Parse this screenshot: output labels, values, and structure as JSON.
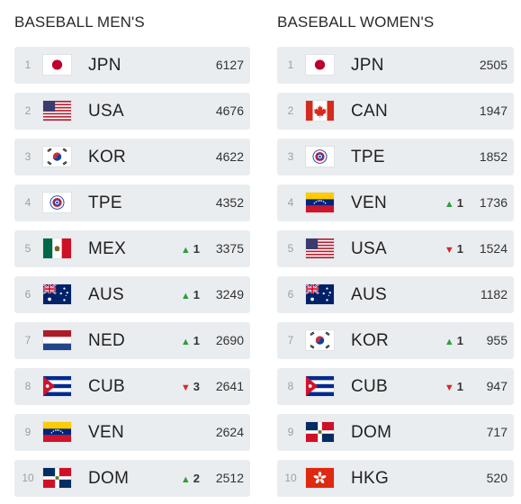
{
  "men": {
    "title": "BASEBALL MEN'S",
    "rows": [
      {
        "rank": "1",
        "code": "JPN",
        "flag": "jpn-flag-icon",
        "change_dir": "",
        "change": "",
        "points": "6127"
      },
      {
        "rank": "2",
        "code": "USA",
        "flag": "usa-flag-icon",
        "change_dir": "",
        "change": "",
        "points": "4676"
      },
      {
        "rank": "3",
        "code": "KOR",
        "flag": "kor-flag-icon",
        "change_dir": "",
        "change": "",
        "points": "4622"
      },
      {
        "rank": "4",
        "code": "TPE",
        "flag": "tpe-flag-icon",
        "change_dir": "",
        "change": "",
        "points": "4352"
      },
      {
        "rank": "5",
        "code": "MEX",
        "flag": "mex-flag-icon",
        "change_dir": "up",
        "change": "1",
        "points": "3375"
      },
      {
        "rank": "6",
        "code": "AUS",
        "flag": "aus-flag-icon",
        "change_dir": "up",
        "change": "1",
        "points": "3249"
      },
      {
        "rank": "7",
        "code": "NED",
        "flag": "ned-flag-icon",
        "change_dir": "up",
        "change": "1",
        "points": "2690"
      },
      {
        "rank": "8",
        "code": "CUB",
        "flag": "cub-flag-icon",
        "change_dir": "down",
        "change": "3",
        "points": "2641"
      },
      {
        "rank": "9",
        "code": "VEN",
        "flag": "ven-flag-icon",
        "change_dir": "",
        "change": "",
        "points": "2624"
      },
      {
        "rank": "10",
        "code": "DOM",
        "flag": "dom-flag-icon",
        "change_dir": "up",
        "change": "2",
        "points": "2512"
      }
    ]
  },
  "women": {
    "title": "BASEBALL WOMEN'S",
    "rows": [
      {
        "rank": "1",
        "code": "JPN",
        "flag": "jpn-flag-icon",
        "change_dir": "",
        "change": "",
        "points": "2505"
      },
      {
        "rank": "2",
        "code": "CAN",
        "flag": "can-flag-icon",
        "change_dir": "",
        "change": "",
        "points": "1947"
      },
      {
        "rank": "3",
        "code": "TPE",
        "flag": "tpe-flag-icon",
        "change_dir": "",
        "change": "",
        "points": "1852"
      },
      {
        "rank": "4",
        "code": "VEN",
        "flag": "ven-flag-icon",
        "change_dir": "up",
        "change": "1",
        "points": "1736"
      },
      {
        "rank": "5",
        "code": "USA",
        "flag": "usa-flag-icon",
        "change_dir": "down",
        "change": "1",
        "points": "1524"
      },
      {
        "rank": "6",
        "code": "AUS",
        "flag": "aus-flag-icon",
        "change_dir": "",
        "change": "",
        "points": "1182"
      },
      {
        "rank": "7",
        "code": "KOR",
        "flag": "kor-flag-icon",
        "change_dir": "up",
        "change": "1",
        "points": "955"
      },
      {
        "rank": "8",
        "code": "CUB",
        "flag": "cub-flag-icon",
        "change_dir": "down",
        "change": "1",
        "points": "947"
      },
      {
        "rank": "9",
        "code": "DOM",
        "flag": "dom-flag-icon",
        "change_dir": "",
        "change": "",
        "points": "717"
      },
      {
        "rank": "10",
        "code": "HKG",
        "flag": "hkg-flag-icon",
        "change_dir": "",
        "change": "",
        "points": "520"
      }
    ]
  },
  "colors": {
    "row_bg": "#eaedf0",
    "up": "#2e9e3a",
    "down": "#d8262e"
  }
}
